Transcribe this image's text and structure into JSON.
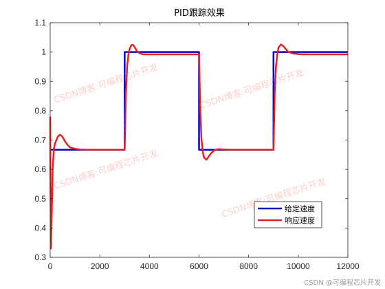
{
  "chart_data": {
    "type": "line",
    "title": "PID跟踪效果",
    "xlabel": "",
    "ylabel": "",
    "xlim": [
      0,
      12000
    ],
    "ylim": [
      0.3,
      1.1
    ],
    "xticks": [
      0,
      2000,
      4000,
      6000,
      8000,
      10000,
      12000
    ],
    "xtick_labels": [
      "0",
      "2000",
      "4000",
      "6000",
      "8000",
      "10000",
      "12000"
    ],
    "yticks": [
      0.3,
      0.4,
      0.5,
      0.6,
      0.7,
      0.8,
      0.9,
      1,
      1.1
    ],
    "ytick_labels": [
      "0.3",
      "0.4",
      "0.5",
      "0.6",
      "0.7",
      "0.8",
      "0.9",
      "1",
      "1.1"
    ],
    "grid": false,
    "legend_position": "bottom-right",
    "series": [
      {
        "name": "给定速度",
        "color": "#0000cc",
        "x": [
          0,
          3000,
          3000,
          6000,
          6000,
          9000,
          9000,
          12000
        ],
        "y": [
          0.667,
          0.667,
          1.0,
          1.0,
          0.667,
          0.667,
          1.0,
          1.0
        ]
      },
      {
        "name": "响应速度",
        "color": "#e62020",
        "x": [
          0,
          10,
          30,
          60,
          100,
          150,
          200,
          250,
          300,
          350,
          400,
          450,
          500,
          600,
          700,
          800,
          1000,
          1200,
          1500,
          2000,
          2500,
          3000,
          3050,
          3100,
          3150,
          3200,
          3250,
          3300,
          3350,
          3400,
          3450,
          3500,
          3600,
          3700,
          3800,
          3900,
          4000,
          4500,
          5000,
          5500,
          5990,
          6000,
          6050,
          6100,
          6150,
          6200,
          6300,
          6400,
          6500,
          6600,
          6700,
          6800,
          7000,
          7200,
          7500,
          8000,
          8500,
          9000,
          9050,
          9100,
          9150,
          9200,
          9300,
          9400,
          9500,
          9600,
          9800,
          10000,
          10200,
          10500,
          11000,
          11500,
          12000
        ],
        "y": [
          0.78,
          0.55,
          0.33,
          0.44,
          0.6,
          0.67,
          0.69,
          0.7,
          0.71,
          0.715,
          0.718,
          0.715,
          0.71,
          0.695,
          0.683,
          0.675,
          0.67,
          0.668,
          0.667,
          0.667,
          0.667,
          0.667,
          0.86,
          0.95,
          0.99,
          1.01,
          1.02,
          1.025,
          1.023,
          1.018,
          1.01,
          1.003,
          0.996,
          0.993,
          0.992,
          0.992,
          0.992,
          0.992,
          0.992,
          0.992,
          0.992,
          0.992,
          0.8,
          0.7,
          0.66,
          0.64,
          0.633,
          0.645,
          0.656,
          0.664,
          0.668,
          0.669,
          0.668,
          0.667,
          0.667,
          0.667,
          0.667,
          0.667,
          0.86,
          0.95,
          0.99,
          1.015,
          1.026,
          1.02,
          1.01,
          1.0,
          0.995,
          0.993,
          0.992,
          0.992,
          0.992,
          0.992,
          0.992
        ]
      }
    ]
  },
  "watermarks": [
    "CSDN博客:可编程芯片开发",
    "CSDN博客:可编程芯片开发",
    "CSDN博客:可编程芯片开发",
    "CSDN博客:可编程芯片开发"
  ],
  "credit": "CSDN @可编程芯片开发"
}
